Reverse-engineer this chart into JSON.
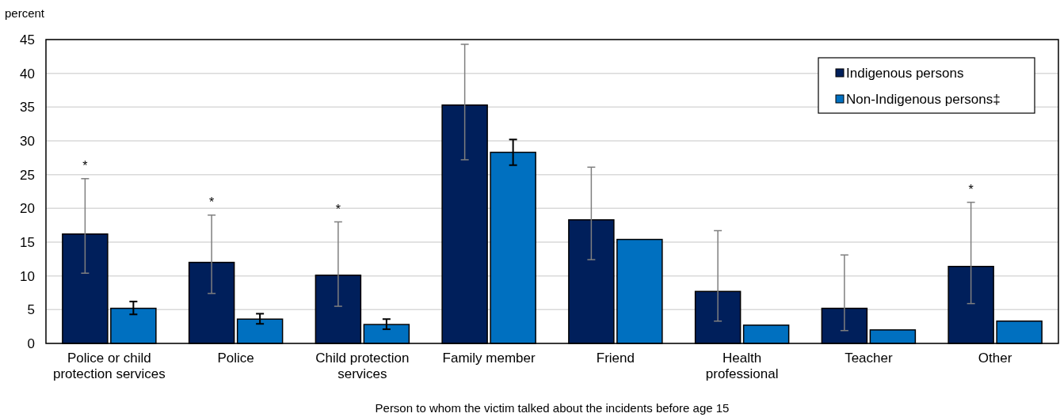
{
  "chart_data": {
    "type": "bar",
    "ylabel": "percent",
    "xlabel": "Person to whom the victim talked about the incidents before age 15",
    "categories": [
      "Police or child protection services",
      "Police",
      "Child protection services",
      "Family member",
      "Friend",
      "Health professional",
      "Teacher",
      "Other"
    ],
    "series": [
      {
        "name": "Indigenous persons",
        "color": "#001f5b",
        "values": [
          16.2,
          12.0,
          10.1,
          35.3,
          18.3,
          7.7,
          5.2,
          11.4
        ],
        "errors": [
          [
            10.4,
            24.4
          ],
          [
            7.4,
            19.0
          ],
          [
            5.5,
            18.0
          ],
          [
            27.2,
            44.3
          ],
          [
            12.4,
            26.1
          ],
          [
            3.3,
            16.7
          ],
          [
            1.9,
            13.1
          ],
          [
            5.9,
            20.9
          ]
        ]
      },
      {
        "name": "Non-Indigenous persons‡",
        "color": "#0070c0",
        "values": [
          5.2,
          3.6,
          2.8,
          28.3,
          15.4,
          2.7,
          2.0,
          3.3
        ],
        "errors": [
          [
            4.3,
            6.2
          ],
          [
            2.9,
            4.4
          ],
          [
            2.1,
            3.6
          ],
          [
            26.4,
            30.2
          ],
          null,
          null,
          null,
          null
        ]
      }
    ],
    "annotations": [
      "*",
      "*",
      "*",
      "*"
    ],
    "ylim": [
      0,
      45
    ],
    "yticks": [
      0,
      5,
      10,
      15,
      20,
      25,
      30,
      35,
      40,
      45
    ],
    "grid": "y",
    "legend": "top right"
  }
}
